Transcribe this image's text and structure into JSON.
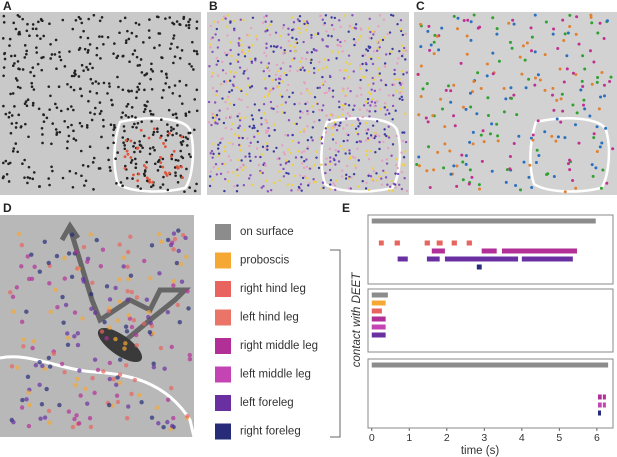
{
  "panels": {
    "labels": [
      "A",
      "B",
      "C",
      "D",
      "E"
    ]
  },
  "legend": [
    {
      "label": "on surface",
      "color": "#8c8c8c"
    },
    {
      "label": "proboscis",
      "color": "#f5a833"
    },
    {
      "label": "right hind leg",
      "color": "#e8645e"
    },
    {
      "label": "left hind leg",
      "color": "#ea7468"
    },
    {
      "label": "right middle leg",
      "color": "#b22f98"
    },
    {
      "label": "left middle leg",
      "color": "#c444b4"
    },
    {
      "label": "left foreleg",
      "color": "#6a30a2"
    },
    {
      "label": "right foreleg",
      "color": "#262c78"
    }
  ],
  "chart_data": {
    "type": "timeline",
    "xlabel": "time (s)",
    "ylabel": "contact with DEET",
    "xlim": [
      -0.1,
      6.43
    ],
    "xticks": [
      0,
      1,
      2,
      3,
      4,
      5,
      6
    ],
    "tracks": [
      {
        "rows": [
          {
            "color": "#8c8c8c",
            "intervals": [
              [
                0,
                5.97
              ]
            ]
          },
          {
            "color": "#e8645e",
            "intervals": [
              [
                0.19,
                0.32
              ],
              [
                0.61,
                0.75
              ],
              [
                1.41,
                1.55
              ],
              [
                1.73,
                1.89
              ],
              [
                2.13,
                2.27
              ],
              [
                2.53,
                2.67
              ]
            ]
          },
          {
            "color": "#b22f98",
            "intervals": [
              [
                1.6,
                1.95
              ],
              [
                2.93,
                3.33
              ],
              [
                3.47,
                5.47
              ]
            ]
          },
          {
            "color": "#6a30a2",
            "intervals": [
              [
                0.69,
                0.96
              ],
              [
                1.47,
                1.81
              ],
              [
                1.95,
                3.9
              ],
              [
                4.0,
                5.36
              ]
            ]
          },
          {
            "color": "#262c78",
            "intervals": [
              [
                2.8,
                2.93
              ]
            ]
          }
        ]
      },
      {
        "rows": [
          {
            "color": "#8c8c8c",
            "intervals": [
              [
                0,
                0.43
              ]
            ]
          },
          {
            "color": "#f5a833",
            "intervals": [
              [
                0,
                0.37
              ]
            ]
          },
          {
            "color": "#e8645e",
            "intervals": [
              [
                0,
                0.27
              ]
            ]
          },
          {
            "color": "#b22f98",
            "intervals": [
              [
                0,
                0.37
              ]
            ]
          },
          {
            "color": "#c444b4",
            "intervals": [
              [
                0,
                0.37
              ]
            ]
          },
          {
            "color": "#6a30a2",
            "intervals": [
              [
                0,
                0.37
              ]
            ]
          }
        ]
      },
      {
        "rows": [
          {
            "color": "#8c8c8c",
            "intervals": [
              [
                0,
                6.3
              ]
            ]
          },
          {
            "color": "#b22f98",
            "intervals": [
              [
                6.03,
                6.13
              ],
              [
                6.16,
                6.24
              ]
            ]
          },
          {
            "color": "#c444b4",
            "intervals": [
              [
                6.03,
                6.13
              ],
              [
                6.16,
                6.24
              ]
            ]
          },
          {
            "color": "#262c78",
            "intervals": [
              [
                6.03,
                6.11
              ]
            ]
          }
        ]
      }
    ]
  }
}
